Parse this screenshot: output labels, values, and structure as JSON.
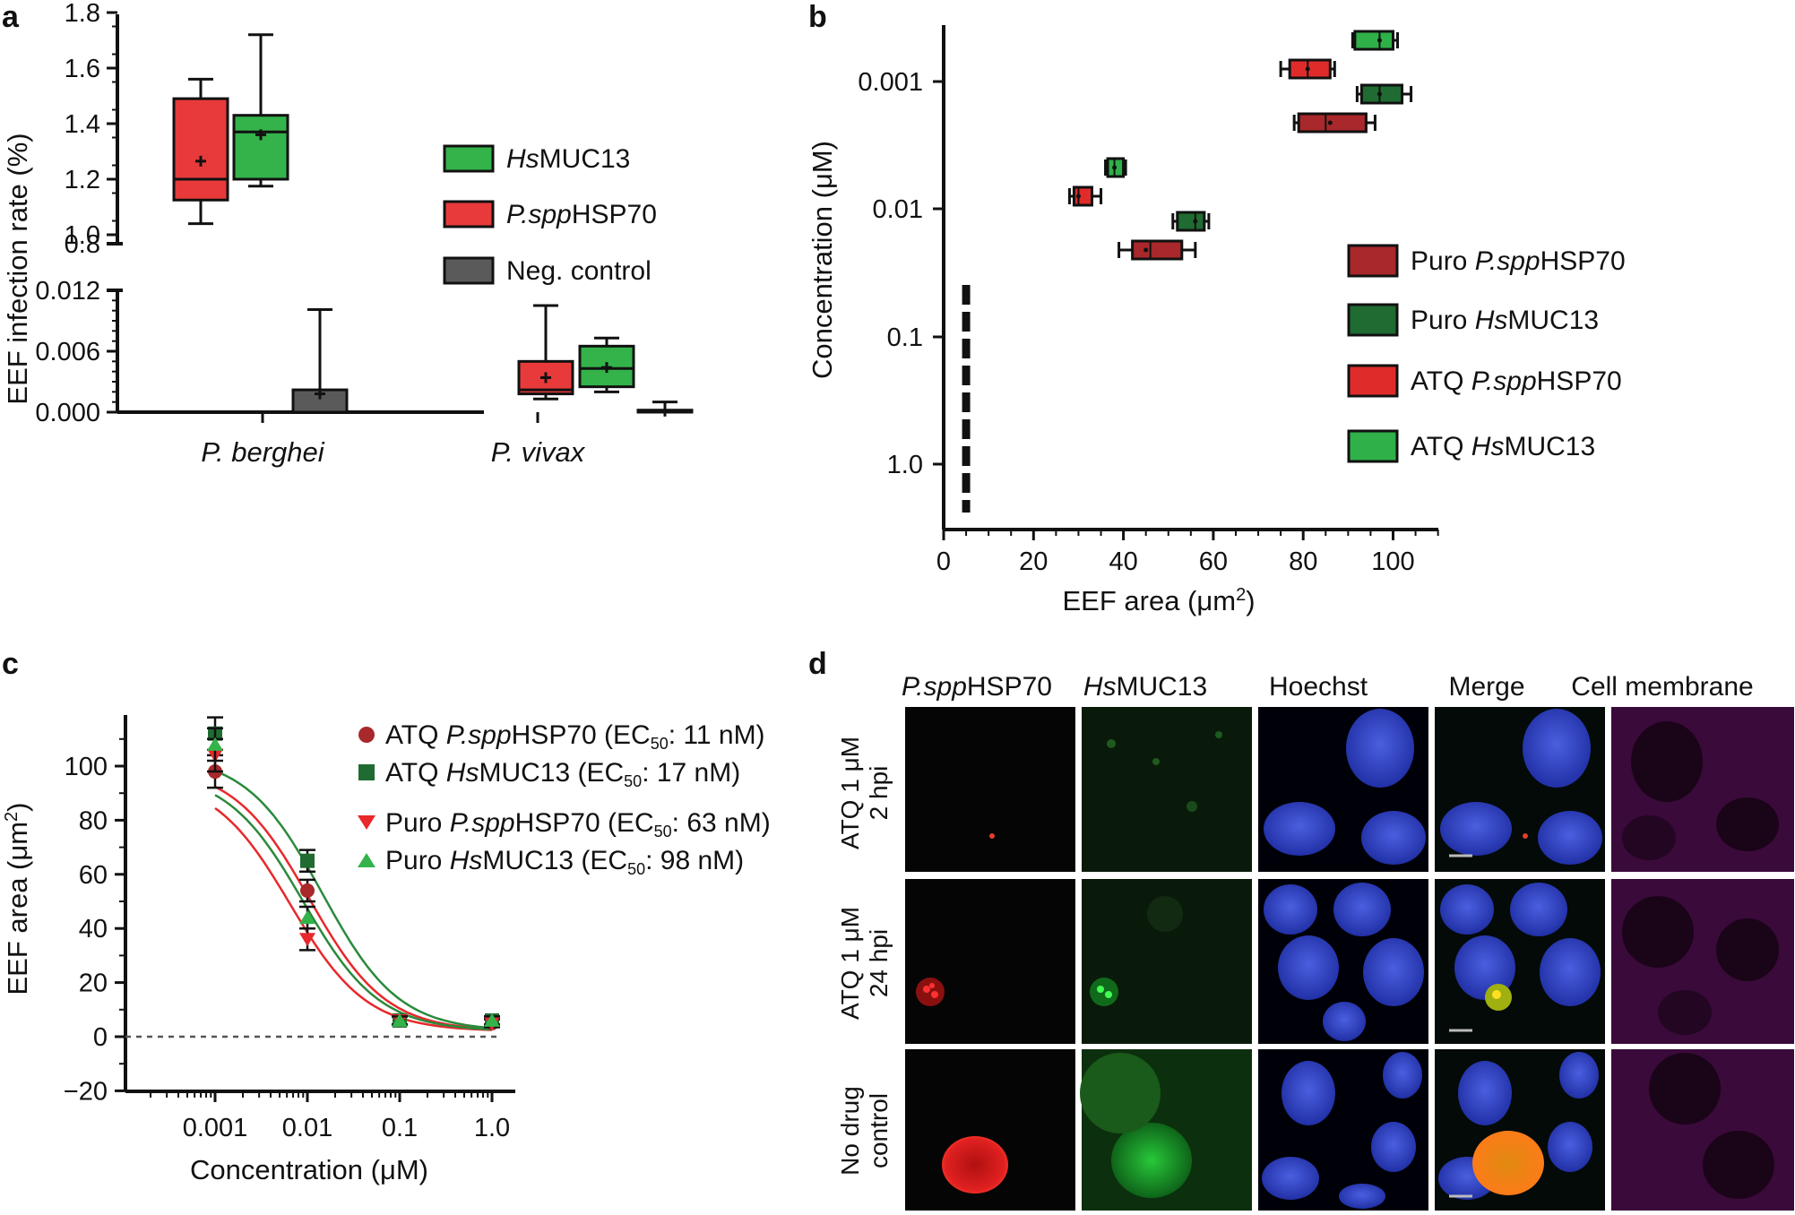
{
  "panel_labels": {
    "a": "a",
    "b": "b",
    "c": "c",
    "d": "d"
  },
  "colors": {
    "hsmuc13": "#33b34a",
    "pspphsp70": "#e83a3a",
    "neg": "#5a5a5a",
    "puro_psp": "#a8282b",
    "puro_hs": "#1f6b31",
    "atq_psp": "#e02b2b",
    "atq_hs": "#2fb048",
    "fit_red": "#e8282b",
    "fit_green": "#2a8a3c"
  },
  "panel_a": {
    "ylabel": "EEF infection rate (%)",
    "upper_ticks": [
      "0.8",
      "1.0",
      "1.2",
      "1.4",
      "1.6",
      "1.8"
    ],
    "lower_ticks": [
      "0.000",
      "0.006",
      "0.012"
    ],
    "groups": [
      "P. berghei",
      "P. vivax"
    ],
    "legend": [
      {
        "italic": "Hs",
        "rest": "MUC13"
      },
      {
        "italic": "P.spp",
        "rest": "HSP70"
      },
      {
        "italic": "",
        "rest": "Neg. control"
      }
    ]
  },
  "panel_b": {
    "ylabel": "Concentration (μM)",
    "xlabel_main": "EEF area (μm",
    "xlabel_sup": "2",
    "xlabel_end": ")",
    "x_ticks": [
      "0",
      "20",
      "40",
      "60",
      "80",
      "100"
    ],
    "y_ticks": [
      "0.001",
      "0.01",
      "0.1",
      "1.0"
    ],
    "legend": [
      {
        "prefix": "Puro ",
        "italic": "P.spp",
        "rest": "HSP70"
      },
      {
        "prefix": "Puro ",
        "italic": "Hs",
        "rest": "MUC13"
      },
      {
        "prefix": "ATQ ",
        "italic": "P.spp",
        "rest": "HSP70"
      },
      {
        "prefix": "ATQ ",
        "italic": "Hs",
        "rest": "MUC13"
      }
    ]
  },
  "panel_c": {
    "ylabel_main": "EEF area (μm",
    "ylabel_sup": "2",
    "ylabel_end": ")",
    "xlabel": "Concentration (μM)",
    "y_ticks": [
      "−20",
      "0",
      "20",
      "40",
      "60",
      "80",
      "100"
    ],
    "x_ticks": [
      "0.001",
      "0.01",
      "0.1",
      "1.0"
    ],
    "legend": [
      {
        "prefix": "ATQ ",
        "italic": "P.spp",
        "rest": "HSP70 (EC",
        "sub": "50",
        "tail": ": 11 nM)"
      },
      {
        "prefix": "ATQ ",
        "italic": "Hs",
        "rest": "MUC13 (EC",
        "sub": "50",
        "tail": ": 17 nM)"
      },
      {
        "prefix": "Puro ",
        "italic": "P.spp",
        "rest": "HSP70 (EC",
        "sub": "50",
        "tail": ": 63 nM)"
      },
      {
        "prefix": "Puro ",
        "italic": "Hs",
        "rest": "MUC13 (EC",
        "sub": "50",
        "tail": ": 98 nM)"
      }
    ]
  },
  "panel_d": {
    "columns": [
      {
        "italic": "P.spp",
        "rest": "HSP70"
      },
      {
        "italic": "Hs",
        "rest": "MUC13"
      },
      {
        "italic": "",
        "rest": "Hoechst"
      },
      {
        "italic": "",
        "rest": "Merge"
      },
      {
        "italic": "",
        "rest": "Cell membrane"
      }
    ],
    "rows": [
      {
        "line1": "ATQ 1 μM",
        "line2": "2 hpi"
      },
      {
        "line1": "ATQ 1 μM",
        "line2": "24 hpi"
      },
      {
        "line1": "No drug",
        "line2": "control"
      }
    ]
  },
  "chart_data": [
    {
      "panel": "a",
      "type": "box",
      "ylabel": "EEF infection rate (%)",
      "upper_ylim": [
        0.8,
        1.8
      ],
      "lower_ylim": [
        0.0,
        0.012
      ],
      "categories": [
        "P. berghei",
        "P. vivax"
      ],
      "series": [
        {
          "name": "P.sppHSP70",
          "boxes": [
            {
              "group": "P. berghei",
              "min": 1.04,
              "q1": 1.125,
              "median": 1.2,
              "q3": 1.49,
              "max": 1.56,
              "mean": 1.265
            },
            {
              "group": "P. vivax",
              "min": 0.0013,
              "q1": 0.0018,
              "median": 0.0022,
              "q3": 0.005,
              "max": 0.0105,
              "mean": 0.0034
            }
          ]
        },
        {
          "name": "HsMUC13",
          "boxes": [
            {
              "group": "P. berghei",
              "min": 1.175,
              "q1": 1.2,
              "median": 1.37,
              "q3": 1.43,
              "max": 1.72,
              "mean": 1.36
            },
            {
              "group": "P. vivax",
              "min": 0.002,
              "q1": 0.0025,
              "median": 0.0043,
              "q3": 0.0065,
              "max": 0.0073,
              "mean": 0.0044
            }
          ]
        },
        {
          "name": "Neg. control",
          "boxes": [
            {
              "group": "P. berghei",
              "min": 0.0,
              "q1": 0.0,
              "median": 0.0,
              "q3": 0.0022,
              "max": 0.0101,
              "mean": 0.0018
            },
            {
              "group": "P. vivax",
              "min": 0.0,
              "q1": 0.0,
              "median": 0.0,
              "q3": 0.0002,
              "max": 0.001,
              "mean": 0.0001
            }
          ]
        }
      ]
    },
    {
      "panel": "b",
      "type": "box-horizontal",
      "xlabel": "EEF area (μm2)",
      "ylabel": "Concentration (μM)",
      "xlim": [
        0,
        110
      ],
      "y_categories": [
        "0.001",
        "0.01",
        "0.1",
        "1.0"
      ],
      "series": [
        {
          "name": "Puro P.sppHSP70",
          "boxes": [
            {
              "conc": "0.001",
              "min": 78,
              "q1": 79,
              "median": 85,
              "q3": 94,
              "max": 96,
              "mean": 86
            },
            {
              "conc": "0.01",
              "min": 39,
              "q1": 42,
              "median": 46,
              "q3": 53,
              "max": 56,
              "mean": 45
            }
          ]
        },
        {
          "name": "Puro HsMUC13",
          "boxes": [
            {
              "conc": "0.001",
              "min": 92,
              "q1": 93,
              "median": 97,
              "q3": 102,
              "max": 104,
              "mean": 97
            },
            {
              "conc": "0.01",
              "min": 51,
              "q1": 52,
              "median": 56,
              "q3": 58,
              "max": 59,
              "mean": 56
            }
          ]
        },
        {
          "name": "ATQ P.sppHSP70",
          "boxes": [
            {
              "conc": "0.001",
              "min": 75,
              "q1": 77,
              "median": 81,
              "q3": 86,
              "max": 87,
              "mean": 81
            },
            {
              "conc": "0.01",
              "min": 28,
              "q1": 29,
              "median": 30,
              "q3": 33,
              "max": 35,
              "mean": 30
            }
          ]
        },
        {
          "name": "ATQ HsMUC13",
          "boxes": [
            {
              "conc": "0.001",
              "min": 91,
              "q1": 91.5,
              "median": 97,
              "q3": 100,
              "max": 101,
              "mean": 97
            },
            {
              "conc": "0.01",
              "min": 36,
              "q1": 36.5,
              "median": 38,
              "q3": 40,
              "max": 40.5,
              "mean": 38
            }
          ]
        },
        {
          "name": "Neg. control",
          "boxes": [
            {
              "conc": "0.1 to 1.0",
              "value": 5
            }
          ]
        }
      ]
    },
    {
      "panel": "c",
      "type": "scatter+line",
      "xscale": "log",
      "xlabel": "Concentration (μM)",
      "ylabel": "EEF area (μm2)",
      "ylim": [
        -20,
        120
      ],
      "x": [
        0.001,
        0.01,
        0.1,
        1.0
      ],
      "series": [
        {
          "name": "ATQ P.sppHSP70",
          "ec50_nM": 11,
          "marker": "circle",
          "values": [
            98,
            54,
            6,
            5
          ]
        },
        {
          "name": "ATQ HsMUC13",
          "ec50_nM": 17,
          "marker": "square",
          "values": [
            112,
            65,
            6,
            6
          ]
        },
        {
          "name": "Puro P.sppHSP70",
          "ec50_nM": 63,
          "marker": "triangle-down",
          "values": [
            104,
            36,
            6,
            5
          ]
        },
        {
          "name": "Puro HsMUC13",
          "ec50_nM": 98,
          "marker": "triangle-up",
          "values": [
            108,
            44,
            6,
            6
          ]
        }
      ]
    }
  ]
}
